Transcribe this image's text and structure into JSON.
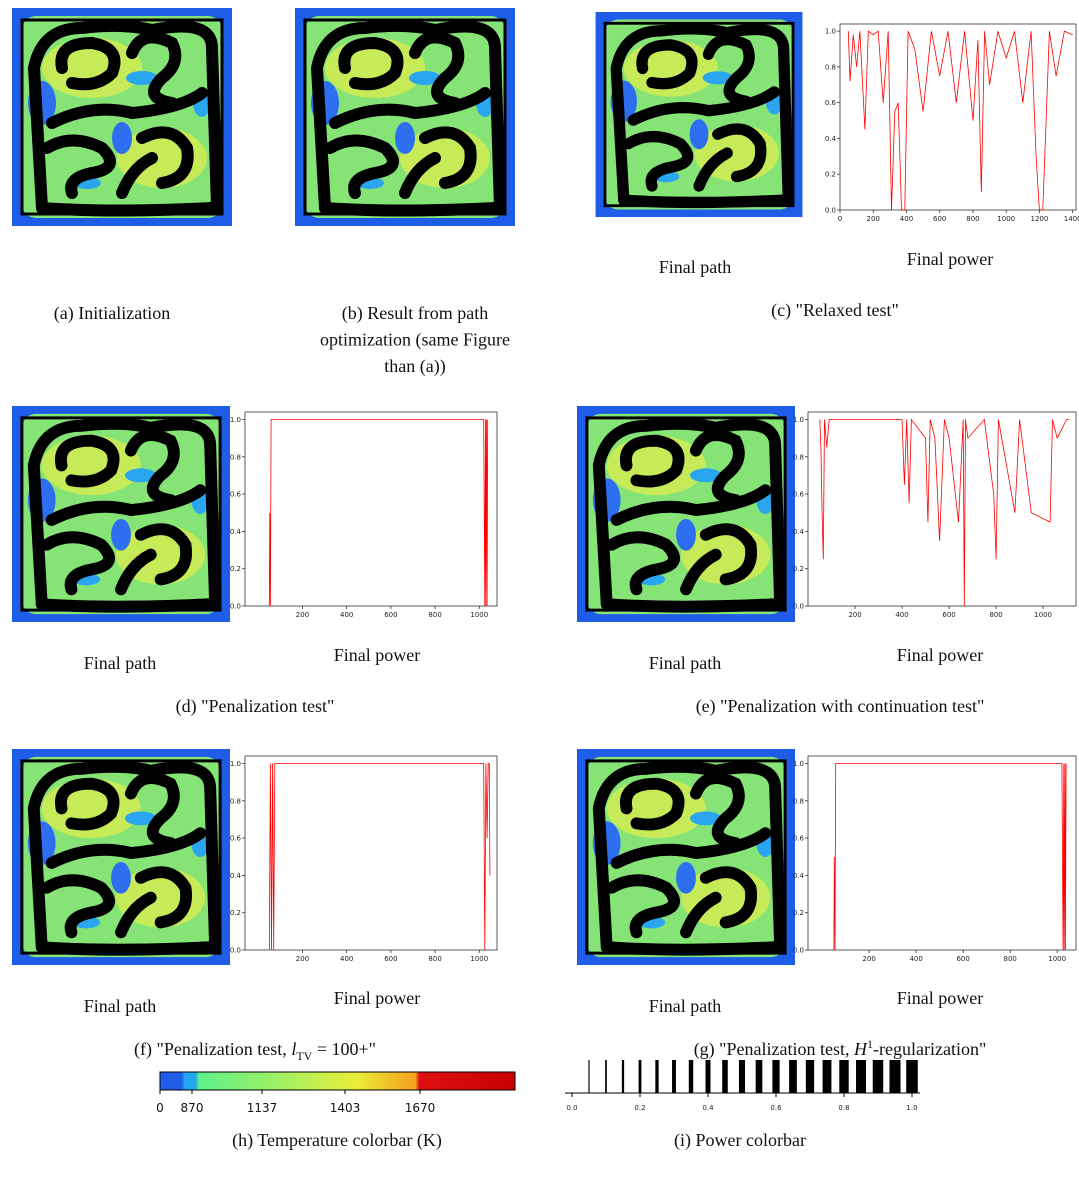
{
  "panels": [
    {
      "caption": [
        [
          "(a) Initialization"
        ]
      ]
    },
    {
      "caption": [
        [
          "(b) Result from path"
        ],
        [
          "optimization (same Figure"
        ],
        [
          "than (a))"
        ]
      ]
    },
    {
      "path_label": "Final path",
      "power_label": "Final power",
      "caption": [
        [
          "(c) \"Relaxed test\""
        ]
      ],
      "power": {
        "type": "line",
        "color": "#ff0000",
        "x": [
          50,
          60,
          80,
          100,
          120,
          150,
          170,
          200,
          230,
          260,
          290,
          310,
          330,
          350,
          370,
          390,
          410,
          450,
          500,
          550,
          600,
          650,
          700,
          750,
          800,
          830,
          850,
          870,
          900,
          950,
          1000,
          1050,
          1100,
          1150,
          1180,
          1200,
          1220,
          1240,
          1260,
          1300,
          1350,
          1400
        ],
        "values": [
          1,
          0.72,
          0.98,
          0.8,
          1,
          0.45,
          1,
          0.98,
          1,
          0.6,
          1,
          0,
          0.55,
          0.6,
          0,
          0,
          1,
          0.9,
          0.55,
          1,
          0.75,
          1,
          0.6,
          1,
          0.5,
          0.95,
          0.1,
          1,
          0.7,
          1,
          0.85,
          1,
          0.6,
          1,
          0.3,
          0,
          0,
          0.5,
          1,
          0.75,
          1,
          0.98
        ],
        "xlim": [
          0,
          1420
        ],
        "ylim": [
          0,
          1.04
        ],
        "xticks": [
          0,
          200,
          400,
          600,
          800,
          1000,
          1200,
          1400
        ],
        "yticks": [
          {
            "value": 0,
            "label": "0.0"
          },
          {
            "value": 0.2,
            "label": "0.2"
          },
          {
            "value": 0.4,
            "label": "0.4"
          },
          {
            "value": 0.6,
            "label": "0.6"
          },
          {
            "value": 0.8,
            "label": "0.8"
          },
          {
            "value": 1,
            "label": "1.0"
          }
        ]
      }
    },
    {
      "path_label": "Final path",
      "power_label": "Final power",
      "caption": [
        [
          "(d) \"Penalization test\""
        ]
      ],
      "power": {
        "type": "line",
        "color": "#ff0000",
        "x": [
          50,
          52,
          55,
          58,
          60,
          1020,
          1025,
          1028,
          1030,
          1033,
          1035,
          1038
        ],
        "values": [
          0,
          0.5,
          0,
          1,
          1,
          1,
          0,
          1,
          0,
          1,
          0,
          1
        ],
        "xlim": [
          -60,
          1080
        ],
        "ylim": [
          0,
          1.04
        ],
        "xticks": [
          200,
          400,
          600,
          800,
          1000
        ],
        "yticks": [
          {
            "value": 0,
            "label": "0.0"
          },
          {
            "value": 0.2,
            "label": "0.2"
          },
          {
            "value": 0.4,
            "label": "0.4"
          },
          {
            "value": 0.6,
            "label": "0.6"
          },
          {
            "value": 0.8,
            "label": "0.8"
          },
          {
            "value": 1,
            "label": "1.0"
          }
        ]
      }
    },
    {
      "path_label": "Final path",
      "power_label": "Final power",
      "caption": [
        [
          "(e) \"Penalization with continuation test\""
        ]
      ],
      "power": {
        "type": "line",
        "color": "#ff0000",
        "x": [
          50,
          55,
          60,
          65,
          70,
          80,
          90,
          400,
          410,
          420,
          430,
          440,
          500,
          510,
          520,
          540,
          560,
          580,
          600,
          640,
          660,
          665,
          670,
          680,
          750,
          790,
          800,
          810,
          880,
          900,
          950,
          1030,
          1040,
          1060,
          1080,
          1100,
          1110
        ],
        "values": [
          1,
          0.85,
          0.5,
          0.25,
          1,
          0.85,
          1,
          1,
          0.65,
          1,
          0.55,
          1,
          0.9,
          0.45,
          1,
          0.9,
          0.35,
          1,
          0.9,
          0.45,
          1,
          0,
          1,
          0.9,
          1,
          0.6,
          0.25,
          1,
          0.5,
          1,
          0.5,
          0.45,
          1,
          0.9,
          0.95,
          1,
          1
        ],
        "xlim": [
          0,
          1140
        ],
        "ylim": [
          0,
          1.04
        ],
        "xticks": [
          200,
          400,
          600,
          800,
          1000
        ],
        "yticks": [
          {
            "value": 0,
            "label": "0.0"
          },
          {
            "value": 0.2,
            "label": "0.2"
          },
          {
            "value": 0.4,
            "label": "0.4"
          },
          {
            "value": 0.6,
            "label": "0.6"
          },
          {
            "value": 0.8,
            "label": "0.8"
          },
          {
            "value": 1,
            "label": "1.0"
          }
        ]
      }
    },
    {
      "path_label": "Final path",
      "power_label": "Final power",
      "caption": [
        [
          "(f) \"Penalization test, ",
          "l",
          "TV",
          " = 100+\""
        ]
      ],
      "power": {
        "type": "line",
        "color": "#ff0000",
        "x": [
          50,
          55,
          60,
          65,
          70,
          75,
          1020,
          1025,
          1030,
          1035,
          1040,
          1045,
          1048
        ],
        "values": [
          0,
          1,
          0,
          1,
          0,
          1,
          1,
          0,
          1,
          0.6,
          1,
          1,
          0.4
        ],
        "xlim": [
          -60,
          1080
        ],
        "ylim": [
          0,
          1.04
        ],
        "xticks": [
          200,
          400,
          600,
          800,
          1000
        ],
        "yticks": [
          {
            "value": 0,
            "label": "0.0"
          },
          {
            "value": 0.2,
            "label": "0.2"
          },
          {
            "value": 0.4,
            "label": "0.4"
          },
          {
            "value": 0.6,
            "label": "0.6"
          },
          {
            "value": 0.8,
            "label": "0.8"
          },
          {
            "value": 1,
            "label": "1.0"
          }
        ]
      }
    },
    {
      "path_label": "Final path",
      "power_label": "Final power",
      "caption": [
        [
          "(g) \"Penalization test, ",
          "H",
          "1",
          "-regularization\""
        ]
      ],
      "power": {
        "type": "line",
        "color": "#ff0000",
        "x": [
          50,
          52,
          55,
          58,
          60,
          1020,
          1025,
          1028,
          1030,
          1033,
          1035,
          1038
        ],
        "values": [
          0,
          0.5,
          0,
          1,
          1,
          1,
          0,
          1,
          0,
          1,
          0,
          1
        ],
        "xlim": [
          -60,
          1080
        ],
        "ylim": [
          0,
          1.04
        ],
        "xticks": [
          200,
          400,
          600,
          800,
          1000
        ],
        "yticks": [
          {
            "value": 0,
            "label": "0.0"
          },
          {
            "value": 0.2,
            "label": "0.2"
          },
          {
            "value": 0.4,
            "label": "0.4"
          },
          {
            "value": 0.6,
            "label": "0.6"
          },
          {
            "value": 0.8,
            "label": "0.8"
          },
          {
            "value": 1,
            "label": "1.0"
          }
        ]
      }
    }
  ],
  "temperature_colorbar": {
    "caption": "(h) Temperature colorbar (K)",
    "ticks": [
      0,
      870,
      1137,
      1403,
      1670
    ]
  },
  "power_colorbar": {
    "caption": "(i) Power colorbar",
    "xlim": [
      0,
      1
    ],
    "xticks": [
      {
        "value": 0,
        "label": "0.0"
      },
      {
        "value": 0.2,
        "label": "0.2"
      },
      {
        "value": 0.4,
        "label": "0.4"
      },
      {
        "value": 0.6,
        "label": "0.6"
      },
      {
        "value": 0.8,
        "label": "0.8"
      },
      {
        "value": 1,
        "label": "1.0"
      }
    ],
    "bars": [
      0.05,
      0.1,
      0.15,
      0.2,
      0.25,
      0.3,
      0.35,
      0.4,
      0.45,
      0.5,
      0.55,
      0.6,
      0.65,
      0.7,
      0.75,
      0.8,
      0.85,
      0.9,
      0.95,
      1
    ]
  }
}
